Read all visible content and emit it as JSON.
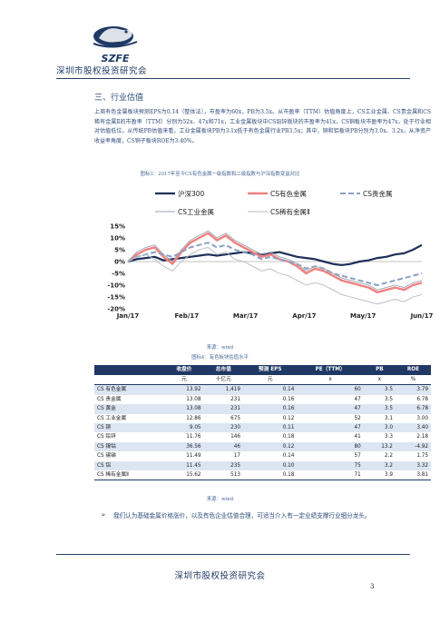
{
  "header": {
    "org_name": "深圳市股权投资研究会",
    "logo_text": "SZFE"
  },
  "section": {
    "title": "三、行业估值",
    "paragraph": "上周有色金属板块预测EPS为0.14（整体法），市盈率为60x，PB为3.5x。从市盈率（TTM）估值角度上，CS工业金属、CS贵金属和CS稀有金属Ⅱ的市盈率（TTM）分别为52x、47x和71x，工业金属板块中CS铅锌板块的市盈率为41x，CS铜板块市盈率为47x，处于行业相对估值低位。从传统PB估值来看，工业金属板块PB为3.1x低于有色金属行业PB3.5x；其中，铜和铝板块PB分别为3.0x、3.2x，从净资产收益率角度，CS铜子板块ROE为3.40%。"
  },
  "figure3": {
    "caption": "图标3：2017年至今CS有色金属一级指数和二级指数与沪深指数变益对比",
    "source": "来源：wind"
  },
  "chart_data": {
    "type": "line",
    "x_ticks": [
      "Jan/17",
      "Feb/17",
      "Mar/17",
      "Apr/17",
      "May/17",
      "Jun/17"
    ],
    "ylim": [
      -20,
      15
    ],
    "y_ticks": [
      "15%",
      "10%",
      "5%",
      "0%",
      "-5%",
      "-10%",
      "-15%",
      "-20%"
    ],
    "legend_placement": "top",
    "series": [
      {
        "name": "沪深300",
        "color": "#1f2f5a",
        "x": [
          0,
          5,
          10,
          15,
          20,
          25,
          30,
          35,
          40,
          45,
          50,
          55,
          60,
          65,
          70,
          75,
          80,
          85,
          90,
          95,
          100,
          105,
          110,
          115,
          120,
          125,
          130,
          135,
          140,
          145,
          150,
          155,
          160,
          165
        ],
        "values": [
          0,
          1,
          1.5,
          2,
          0.5,
          1,
          1.5,
          2,
          2.5,
          3,
          2.5,
          3,
          3.5,
          4,
          3.5,
          3,
          3.5,
          4,
          3,
          2,
          1.5,
          1,
          0,
          -1,
          -1.5,
          -1,
          0,
          0.5,
          1.5,
          2,
          3,
          3.5,
          5,
          7
        ]
      },
      {
        "name": "CS有色金属",
        "color": "#f08080",
        "x": [
          0,
          5,
          10,
          15,
          20,
          25,
          30,
          35,
          40,
          45,
          50,
          55,
          60,
          65,
          70,
          75,
          80,
          85,
          90,
          95,
          100,
          105,
          110,
          115,
          120,
          125,
          130,
          135,
          140,
          145,
          150,
          155,
          160,
          165
        ],
        "values": [
          0,
          3,
          5,
          6,
          2,
          -1,
          4,
          8,
          10,
          12,
          9,
          11,
          8,
          6,
          4,
          2,
          3,
          1,
          0,
          -2,
          -5,
          -3,
          -4,
          -6,
          -8,
          -9,
          -10,
          -11,
          -13,
          -12,
          -11,
          -12,
          -10,
          -9
        ]
      },
      {
        "name": "CS贵金属",
        "color": "#8aa0c4",
        "x": [
          0,
          5,
          10,
          15,
          20,
          25,
          30,
          35,
          40,
          45,
          50,
          55,
          60,
          65,
          70,
          75,
          80,
          85,
          90,
          95,
          100,
          105,
          110,
          115,
          120,
          125,
          130,
          135,
          140,
          145,
          150,
          155,
          160,
          165
        ],
        "values": [
          0,
          2,
          3,
          4,
          3,
          2,
          4,
          6,
          7,
          8,
          6,
          7,
          5,
          4,
          3,
          1,
          2,
          1,
          0,
          -1,
          -3,
          -2,
          -3,
          -5,
          -6,
          -7,
          -8,
          -9,
          -10,
          -9,
          -8,
          -7,
          -6,
          -5
        ]
      },
      {
        "name": "CS工业金属",
        "color": "#9aa2ad",
        "x": [
          0,
          5,
          10,
          15,
          20,
          25,
          30,
          35,
          40,
          45,
          50,
          55,
          60,
          65,
          70,
          75,
          80,
          85,
          90,
          95,
          100,
          105,
          110,
          115,
          120,
          125,
          130,
          135,
          140,
          145,
          150,
          155,
          160,
          165
        ],
        "values": [
          0,
          4,
          6,
          7,
          3,
          0,
          5,
          9,
          11,
          13,
          10,
          12,
          9,
          7,
          5,
          3,
          4,
          2,
          1,
          -1,
          -4,
          -2,
          -3,
          -5,
          -7,
          -8,
          -9,
          -10,
          -12,
          -11,
          -10,
          -11,
          -9,
          -8
        ]
      },
      {
        "name": "CS稀有金属Ⅱ",
        "color": "#b4bac3",
        "x": [
          0,
          5,
          10,
          15,
          20,
          25,
          30,
          35,
          40,
          45,
          50,
          55,
          60,
          65,
          70,
          75,
          80,
          85,
          90,
          95,
          100,
          105,
          110,
          115,
          120,
          125,
          130,
          135,
          140,
          145,
          150,
          155,
          160,
          165
        ],
        "values": [
          0,
          2,
          3,
          1,
          -2,
          -4,
          0,
          3,
          5,
          6,
          3,
          4,
          1,
          0,
          -2,
          -4,
          -3,
          -5,
          -6,
          -8,
          -10,
          -9,
          -10,
          -12,
          -14,
          -15,
          -16,
          -17,
          -18,
          -17,
          -16,
          -17,
          -15,
          -14
        ]
      }
    ]
  },
  "table": {
    "caption": "图标4：有色板块估值水平",
    "source": "来源：wind",
    "headers": [
      "",
      "收盘价",
      "总市值",
      "预测 EPS",
      "PE（TTM）",
      "PB",
      "ROE"
    ],
    "units": [
      "",
      "元",
      "十亿元",
      "元",
      "x",
      "x",
      "%"
    ],
    "rows": [
      [
        "CS 有色金属",
        "13.92",
        "1,419",
        "0.14",
        "60",
        "3.5",
        "3.79"
      ],
      [
        "CS 贵金属",
        "13.08",
        "231",
        "0.16",
        "47",
        "3.5",
        "6.78"
      ],
      [
        "CS 黄金",
        "13.08",
        "231",
        "0.16",
        "47",
        "3.5",
        "6.78"
      ],
      [
        "CS 工业金属",
        "12.86",
        "675",
        "0.12",
        "52",
        "3.1",
        "3.00"
      ],
      [
        "CS 铜",
        "9.05",
        "230",
        "0.11",
        "47",
        "3.0",
        "3.40"
      ],
      [
        "CS 铅锌",
        "11.76",
        "146",
        "0.18",
        "41",
        "3.3",
        "2.18"
      ],
      [
        "CS 镍钴",
        "36.56",
        "46",
        "0.12",
        "80",
        "13.2",
        "-4.92"
      ],
      [
        "CS 锡锑",
        "11.49",
        "17",
        "0.14",
        "57",
        "2.2",
        "1.75"
      ],
      [
        "CS 铝",
        "11.45",
        "235",
        "0.10",
        "75",
        "3.2",
        "3.32"
      ],
      [
        "CS 稀有金属Ⅱ",
        "15.62",
        "513",
        "0.18",
        "71",
        "3.9",
        "3.81"
      ]
    ]
  },
  "conclusion": {
    "bullet": "➢",
    "text": "我们认为基础金属价格涨价，以及有色企业估值合理，可适当介入有一定业绩支撑行业细分龙头。"
  },
  "footer": {
    "org_name": "深圳市股权投资研究会",
    "page_number": "3"
  }
}
